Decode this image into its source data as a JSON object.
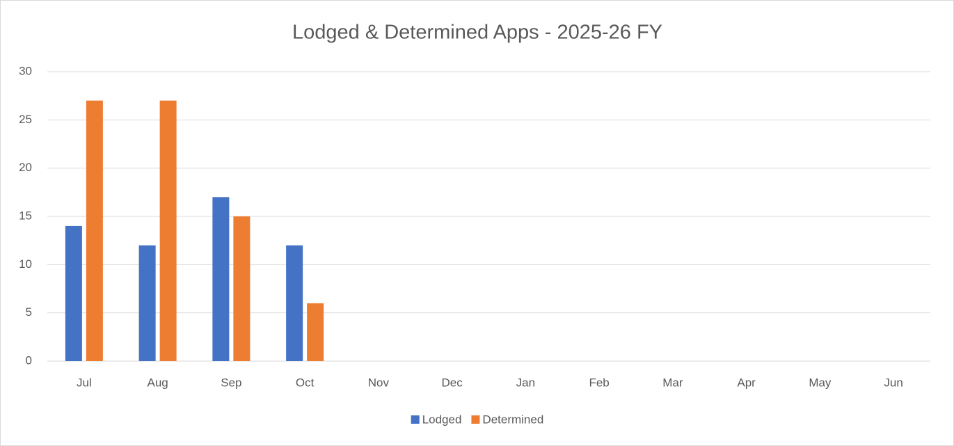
{
  "chart_data": {
    "type": "bar",
    "title": "Lodged & Determined Apps - 2025-26 FY",
    "categories": [
      "Jul",
      "Aug",
      "Sep",
      "Oct",
      "Nov",
      "Dec",
      "Jan",
      "Feb",
      "Mar",
      "Apr",
      "May",
      "Jun"
    ],
    "series": [
      {
        "name": "Lodged",
        "color": "#4472c4",
        "values": [
          14,
          12,
          17,
          12,
          null,
          null,
          null,
          null,
          null,
          null,
          null,
          null
        ]
      },
      {
        "name": "Determined",
        "color": "#ed7d31",
        "values": [
          27,
          27,
          15,
          6,
          null,
          null,
          null,
          null,
          null,
          null,
          null,
          null
        ]
      }
    ],
    "ylim": [
      0,
      30
    ],
    "yticks": [
      0,
      5,
      10,
      15,
      20,
      25,
      30
    ],
    "grid": true,
    "legend": "bottom"
  }
}
